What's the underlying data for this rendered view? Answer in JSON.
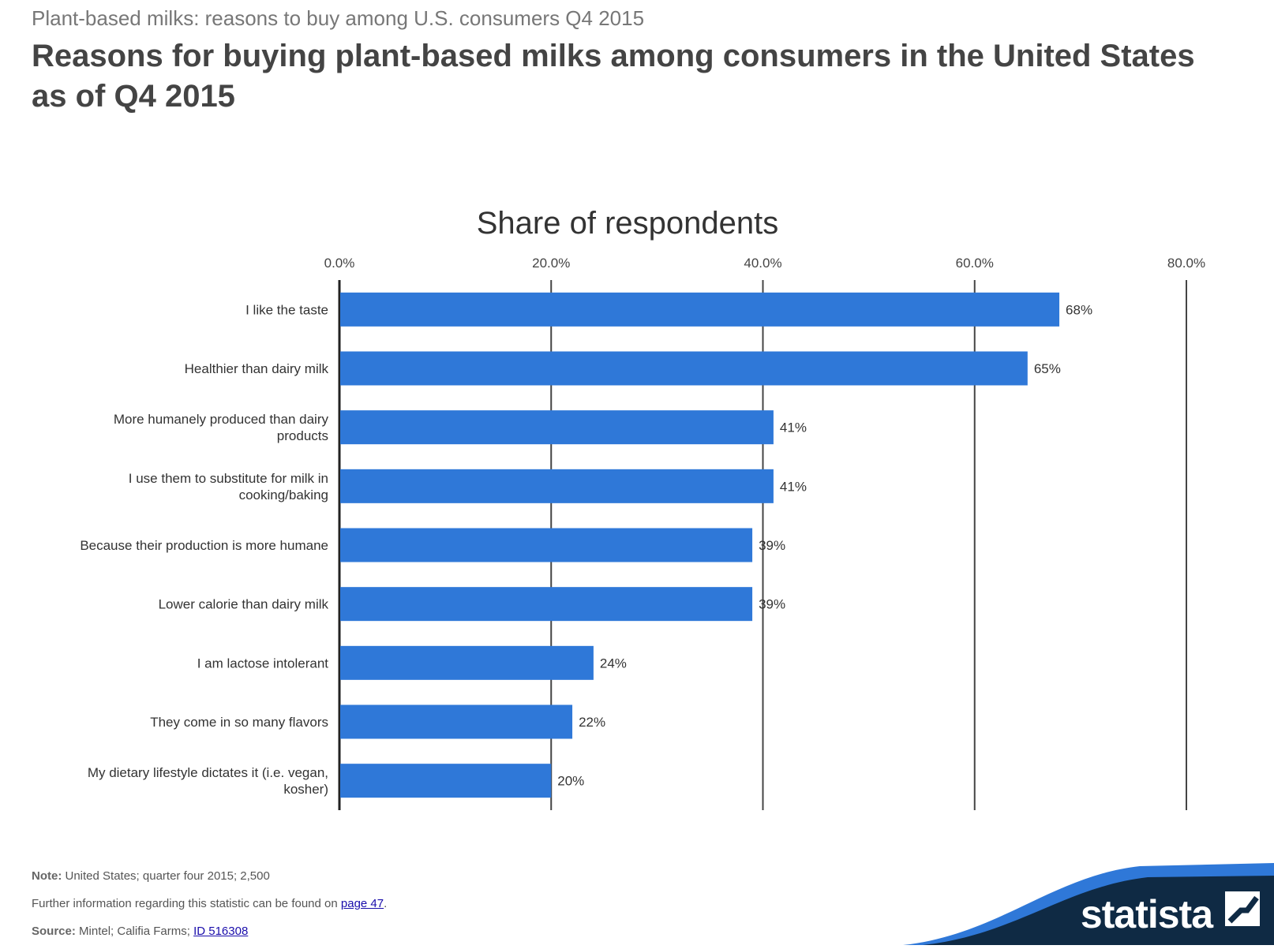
{
  "header": {
    "supertitle": "Plant-based milks: reasons to buy among U.S. consumers Q4 2015",
    "title": "Reasons for buying plant-based milks among consumers in the United States as of Q4 2015"
  },
  "chart_data": {
    "type": "bar",
    "orientation": "horizontal",
    "title": "Share of respondents",
    "categories": [
      [
        "I like the taste"
      ],
      [
        "Healthier than dairy milk"
      ],
      [
        "More humanely produced than dairy",
        "products"
      ],
      [
        "I use them to substitute for milk in",
        "cooking/baking"
      ],
      [
        "Because their production is more humane"
      ],
      [
        "Lower calorie than dairy milk"
      ],
      [
        "I am lactose intolerant"
      ],
      [
        "They come in so many flavors"
      ],
      [
        "My dietary lifestyle dictates it (i.e. vegan,",
        "kosher)"
      ]
    ],
    "values": [
      68,
      65,
      41,
      41,
      39,
      39,
      24,
      22,
      20
    ],
    "value_labels": [
      "68%",
      "65%",
      "41%",
      "41%",
      "39%",
      "39%",
      "24%",
      "22%",
      "20%"
    ],
    "xlim": [
      0,
      80
    ],
    "x_ticks": [
      0,
      20,
      40,
      60,
      80
    ],
    "x_tick_labels": [
      "0.0%",
      "20.0%",
      "40.0%",
      "60.0%",
      "80.0%"
    ],
    "grid": true,
    "axis_position": "top",
    "bar_color": "#2f78d8"
  },
  "footer": {
    "note_label": "Note:",
    "note_text": "United States; quarter four 2015; 2,500",
    "info_text": "Further information regarding this statistic can be found on",
    "info_link": "page 47",
    "info_end": ".",
    "source_label": "Source:",
    "source_text": "Mintel; Califia Farms;",
    "source_link": "ID 516308"
  },
  "brand": {
    "name": "statista",
    "dark_color": "#0f2a44",
    "light_color": "#2f78d8"
  }
}
